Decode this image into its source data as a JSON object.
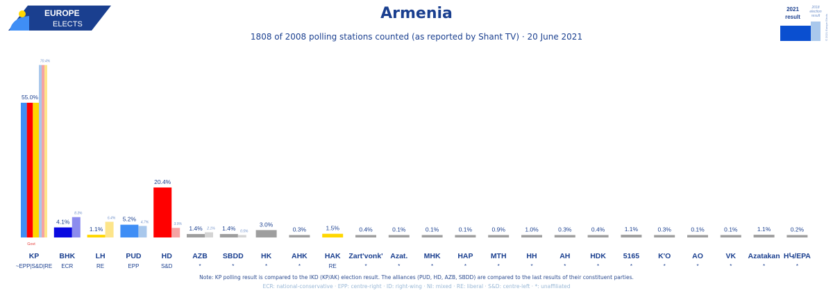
{
  "header": {
    "logo_line1": "EUROPE",
    "logo_line2": "ELECTS",
    "title": "Armenia",
    "subtitle": "1808 of 2008 polling stations counted (as reported by Shant TV) · 20 June 2021"
  },
  "inset_legend": {
    "current_label_1": "2021",
    "current_label_2": "result",
    "previous_label": "2018 election result",
    "credit": "© 2021 Europe Elects"
  },
  "footer": {
    "note": "Note: KP polling result is compared to the IKD (KP/AK) election result. The alliances (PUD, HD, AZB, SBDD) are compared to the last results of their constituent parties.",
    "legend": "ECR: national-conservative · EPP: centre-right · ID: right-wing · NI: mixed · RE: liberal · S&D: centre-left · *: unaffiliated"
  },
  "colors": {
    "brand": "#1a3f8f",
    "previous_light": "#a9c8ec",
    "gov_label": "#e53935"
  },
  "chart_data": {
    "type": "bar",
    "title": "Armenia",
    "subtitle": "1808 of 2008 polling stations counted (as reported by Shant TV) · 20 June 2021",
    "ylim": [
      0,
      72
    ],
    "grid": false,
    "unit": "%",
    "parties": [
      {
        "name": "KP",
        "group": "~EPP|S&D|RE",
        "value": 55.0,
        "label": "55.0%",
        "previous": 70.4,
        "previous_label": "70.4%",
        "annotation": "Govt",
        "colors": [
          "#3f8ef5",
          "#ff0000",
          "#ffd700"
        ],
        "previous_colors": [
          "#a9c8ec",
          "#f5a3a3",
          "#fde58a"
        ]
      },
      {
        "name": "BHK",
        "group": "ECR",
        "value": 4.1,
        "label": "4.1%",
        "previous": 8.3,
        "previous_label": "8.3%",
        "colors": [
          "#0a0ae0"
        ],
        "previous_colors": [
          "#8c8cee"
        ]
      },
      {
        "name": "LH",
        "group": "RE",
        "value": 1.1,
        "label": "1.1%",
        "previous": 6.4,
        "previous_label": "6.4%",
        "colors": [
          "#ffd700"
        ],
        "previous_colors": [
          "#fde58a"
        ]
      },
      {
        "name": "PUD",
        "group": "EPP",
        "value": 5.2,
        "label": "5.2%",
        "previous": 4.7,
        "previous_label": "4.7%",
        "colors": [
          "#3f8ef5"
        ],
        "previous_colors": [
          "#a9c8ec"
        ]
      },
      {
        "name": "HD",
        "group": "S&D",
        "value": 20.4,
        "label": "20.4%",
        "previous": 3.9,
        "previous_label": "3.9%",
        "colors": [
          "#ff0000"
        ],
        "previous_colors": [
          "#f5a3a3"
        ]
      },
      {
        "name": "AZB",
        "group": "*",
        "value": 1.4,
        "label": "1.4%",
        "previous": 2.1,
        "previous_label": "2.1%",
        "colors": [
          "#9e9e9e"
        ],
        "previous_colors": [
          "#d4d4d4"
        ]
      },
      {
        "name": "SBDD",
        "group": "*",
        "value": 1.4,
        "label": "1.4%",
        "previous": 0.5,
        "previous_label": "0.5%",
        "colors": [
          "#9e9e9e"
        ],
        "previous_colors": [
          "#d4d4d4"
        ]
      },
      {
        "name": "HK",
        "group": "*",
        "value": 3.0,
        "label": "3.0%",
        "colors": [
          "#9e9e9e"
        ]
      },
      {
        "name": "AHK",
        "group": "*",
        "value": 0.3,
        "label": "0.3%",
        "colors": [
          "#9e9e9e"
        ]
      },
      {
        "name": "HAK",
        "group": "RE",
        "value": 1.5,
        "label": "1.5%",
        "colors": [
          "#ffd700"
        ]
      },
      {
        "name": "Zart'vonk'",
        "group": "*",
        "value": 0.4,
        "label": "0.4%",
        "colors": [
          "#9e9e9e"
        ]
      },
      {
        "name": "Azat.",
        "group": "*",
        "value": 0.1,
        "label": "0.1%",
        "colors": [
          "#9e9e9e"
        ]
      },
      {
        "name": "MHK",
        "group": "*",
        "value": 0.1,
        "label": "0.1%",
        "colors": [
          "#9e9e9e"
        ]
      },
      {
        "name": "HAP",
        "group": "*",
        "value": 0.1,
        "label": "0.1%",
        "colors": [
          "#9e9e9e"
        ]
      },
      {
        "name": "MTH",
        "group": "*",
        "value": 0.9,
        "label": "0.9%",
        "colors": [
          "#9e9e9e"
        ]
      },
      {
        "name": "HH",
        "group": "*",
        "value": 1.0,
        "label": "1.0%",
        "colors": [
          "#9e9e9e"
        ]
      },
      {
        "name": "AH",
        "group": "*",
        "value": 0.3,
        "label": "0.3%",
        "colors": [
          "#9e9e9e"
        ]
      },
      {
        "name": "HDK",
        "group": "*",
        "value": 0.4,
        "label": "0.4%",
        "colors": [
          "#9e9e9e"
        ]
      },
      {
        "name": "5165",
        "group": "*",
        "value": 1.1,
        "label": "1.1%",
        "colors": [
          "#9e9e9e"
        ]
      },
      {
        "name": "K'O",
        "group": "*",
        "value": 0.3,
        "label": "0.3%",
        "colors": [
          "#9e9e9e"
        ]
      },
      {
        "name": "AO",
        "group": "*",
        "value": 0.1,
        "label": "0.1%",
        "colors": [
          "#9e9e9e"
        ]
      },
      {
        "name": "VK",
        "group": "*",
        "value": 0.1,
        "label": "0.1%",
        "colors": [
          "#9e9e9e"
        ]
      },
      {
        "name": "Azatakan",
        "group": "*",
        "value": 1.1,
        "label": "1.1%",
        "colors": [
          "#9e9e9e"
        ]
      },
      {
        "name": "HԿ/EPA",
        "group": "*",
        "value": 0.2,
        "label": "0.2%",
        "colors": [
          "#9e9e9e"
        ]
      }
    ]
  }
}
